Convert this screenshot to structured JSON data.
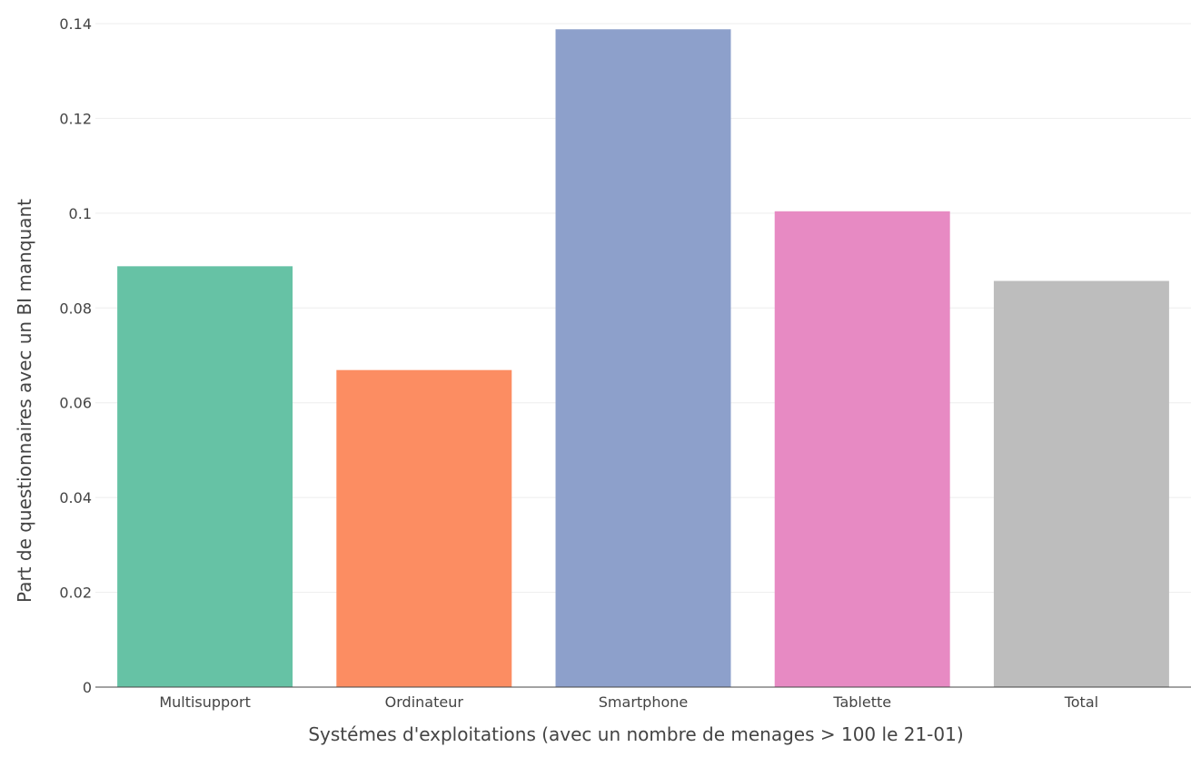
{
  "chart_data": {
    "type": "bar",
    "title": "",
    "xlabel": "Systémes d'exploitations (avec un nombre de menages > 100 le 21-01)",
    "ylabel": "Part de questionnaires avec un BI manquant",
    "ylim": [
      0,
      0.14
    ],
    "yticks": [
      0,
      0.02,
      0.04,
      0.06,
      0.08,
      0.1,
      0.12,
      0.14
    ],
    "ytick_labels": [
      "0",
      "0.02",
      "0.04",
      "0.06",
      "0.08",
      "0.1",
      "0.12",
      "0.14"
    ],
    "grid": true,
    "legend": "none",
    "categories": [
      "Multisupport",
      "Ordinateur",
      "Smartphone",
      "Tablette",
      "Total"
    ],
    "values": [
      0.0888,
      0.0669,
      0.1388,
      0.1004,
      0.0857
    ],
    "colors": [
      "#66c2a5",
      "#fc8d62",
      "#8da0cb",
      "#e78ac3",
      "#bdbdbd"
    ]
  }
}
